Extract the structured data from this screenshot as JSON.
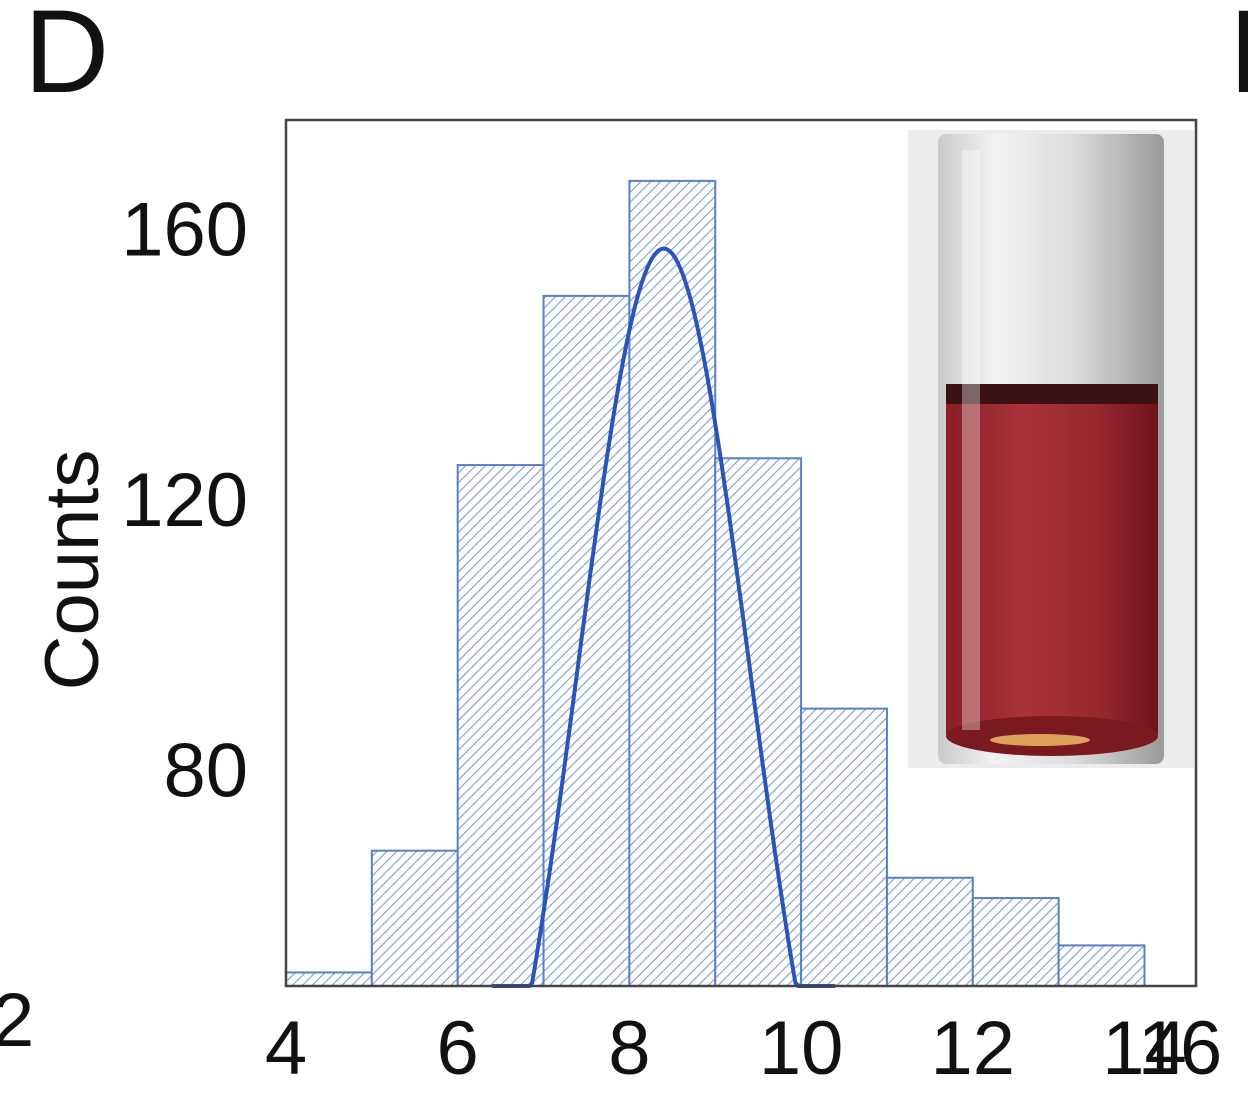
{
  "panel": {
    "letter": "D",
    "right_edge_letter": "I",
    "left_edge_tick": "2"
  },
  "chart_data": {
    "type": "bar",
    "bins": [
      {
        "x0": 4.0,
        "x1": 5.0,
        "count": 50
      },
      {
        "x0": 5.0,
        "x1": 6.0,
        "count": 68
      },
      {
        "x0": 6.0,
        "x1": 7.0,
        "count": 125
      },
      {
        "x0": 7.0,
        "x1": 8.0,
        "count": 150
      },
      {
        "x0": 8.0,
        "x1": 9.0,
        "count": 167
      },
      {
        "x0": 9.0,
        "x1": 10.0,
        "count": 126
      },
      {
        "x0": 10.0,
        "x1": 11.0,
        "count": 89
      },
      {
        "x0": 11.0,
        "x1": 12.0,
        "count": 64
      },
      {
        "x0": 12.0,
        "x1": 13.0,
        "count": 61
      },
      {
        "x0": 13.0,
        "x1": 14.0,
        "count": 54
      },
      {
        "x0": 14.0,
        "x1": 15.0,
        "count": 48
      }
    ],
    "fit_curve": {
      "type": "gaussian",
      "mean": 8.4,
      "sd": 1.0,
      "peak": 157,
      "x_range": [
        6.4,
        10.4
      ]
    },
    "xlim": [
      4.0,
      14.6
    ],
    "ylim": [
      48,
      176
    ],
    "xticks": [
      4,
      6,
      8,
      10,
      12,
      14,
      16
    ],
    "yticks": [
      80,
      120,
      160
    ],
    "ylabel": "Counts",
    "xlabel": "",
    "bar_color": "#5a7fc8",
    "curve_color": "#2a55b8",
    "inset": "photo of vial with red liquid"
  }
}
